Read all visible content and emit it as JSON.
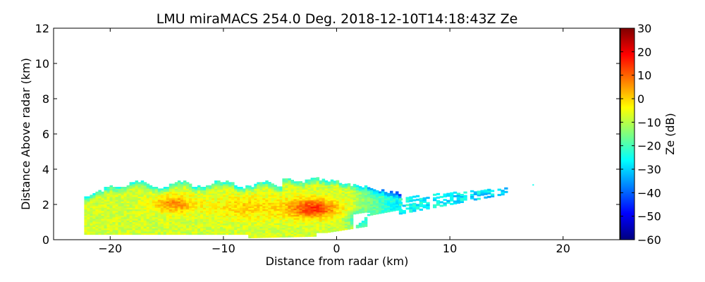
{
  "chart_data": {
    "type": "heatmap",
    "title": "LMU miraMACS 254.0 Deg. 2018-12-10T14:18:43Z  Ze",
    "xlabel": "Distance from radar (km)",
    "ylabel": "Distance Above radar  (km)",
    "xlim": [
      -25,
      25
    ],
    "ylim": [
      0,
      12
    ],
    "xticks": [
      -20,
      -10,
      0,
      10,
      20
    ],
    "xtick_labels": [
      "−20",
      "−10",
      "0",
      "10",
      "20"
    ],
    "yticks": [
      0,
      2,
      4,
      6,
      8,
      10,
      12
    ],
    "ytick_labels": [
      "0",
      "2",
      "4",
      "6",
      "8",
      "10",
      "12"
    ],
    "colorbar": {
      "label": "Ze (dB)",
      "range": [
        -60,
        30
      ],
      "ticks": [
        30,
        20,
        10,
        0,
        -10,
        -20,
        -30,
        -40,
        -50,
        -60
      ],
      "tick_labels": [
        "30",
        "20",
        "10",
        "0",
        "−10",
        "−20",
        "−30",
        "−40",
        "−50",
        "−60"
      ],
      "colormap": "jet",
      "colormap_stops": [
        "#00007f",
        "#0000ff",
        "#007fff",
        "#00ffff",
        "#7fff7f",
        "#ffff00",
        "#ff7f00",
        "#ff0000",
        "#7f0000"
      ]
    },
    "echo_regions": [
      {
        "name": "main-echo-body",
        "x_range": [
          -22.3,
          5.5
        ],
        "y_range": [
          0.3,
          3.6
        ],
        "ze_typical_db": -10
      },
      {
        "name": "core-max",
        "x": -2.2,
        "y": 1.7,
        "ze_db": 13
      },
      {
        "name": "secondary-max",
        "x": -14.5,
        "y": 2.0,
        "ze_db": 8
      },
      {
        "name": "anvil-tail",
        "x_range": [
          5,
          15
        ],
        "y_range": [
          1.5,
          2.7
        ],
        "ze_typical_db": -25
      },
      {
        "name": "isolated-echo",
        "x": 17.4,
        "y": 3.1,
        "ze_db": -25
      }
    ]
  }
}
